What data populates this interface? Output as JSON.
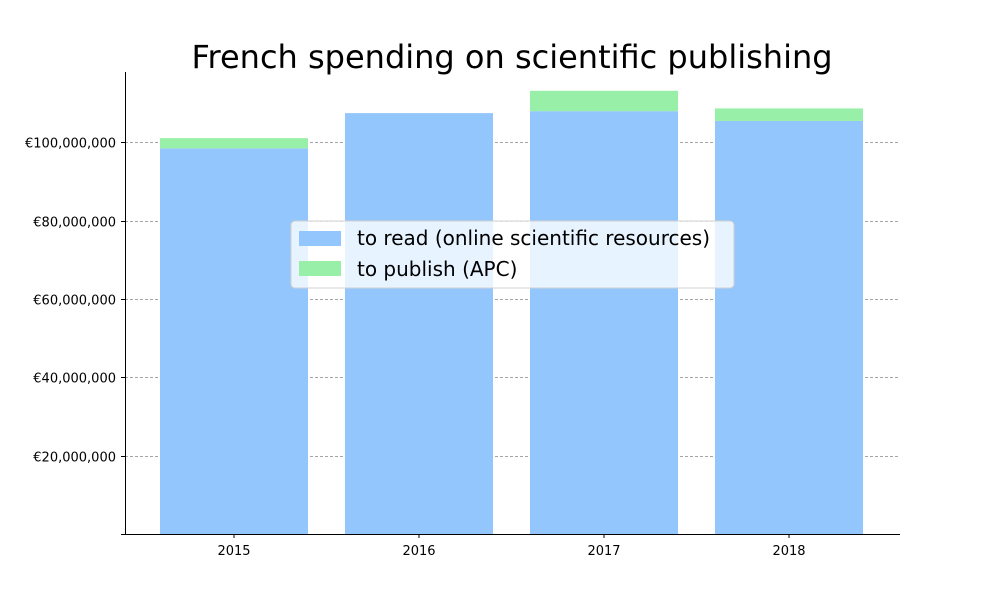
{
  "chart_data": {
    "type": "bar",
    "stacked": true,
    "title": "French spending on scientific publishing",
    "xlabel": "",
    "ylabel": "",
    "categories": [
      "2015",
      "2016",
      "2017",
      "2018"
    ],
    "series": [
      {
        "name": "to read (online scientific resources)",
        "color": "#93c6fc",
        "values": [
          98500000,
          107500000,
          108000000,
          105500000
        ]
      },
      {
        "name": "to publish (APC)",
        "color": "#98f0a8",
        "values": [
          2600000,
          0,
          5200000,
          3200000
        ]
      }
    ],
    "ylim": [
      0,
      118000000
    ],
    "yticks": [
      20000000,
      40000000,
      60000000,
      80000000,
      100000000
    ],
    "ytick_labels": [
      "€20,000,000",
      "€40,000,000",
      "€60,000,000",
      "€80,000,000",
      "€100,000,000"
    ],
    "grid": "horizontal dashed",
    "legend_position": "center"
  }
}
